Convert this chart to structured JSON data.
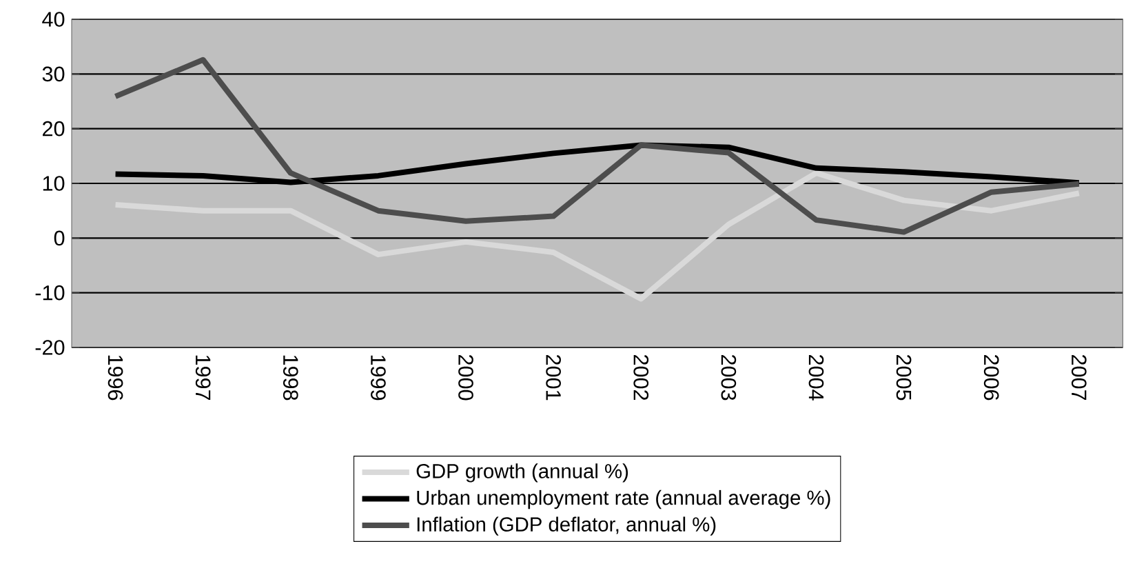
{
  "chart_data": {
    "type": "line",
    "categories": [
      "1996",
      "1997",
      "1998",
      "1999",
      "2000",
      "2001",
      "2002",
      "2003",
      "2004",
      "2005",
      "2006",
      "2007"
    ],
    "series": [
      {
        "name": "GDP growth (annual %)",
        "color": "#d9d9d9",
        "values": [
          6.1,
          5.0,
          5.0,
          -3.0,
          -0.7,
          -2.6,
          -11.1,
          2.5,
          11.9,
          6.9,
          5.0,
          8.2
        ]
      },
      {
        "name": "Urban unemployment rate (annual average %)",
        "color": "#000000",
        "values": [
          11.7,
          11.4,
          10.2,
          11.4,
          13.6,
          15.5,
          17.0,
          16.6,
          12.8,
          12.1,
          11.2,
          10.1
        ]
      },
      {
        "name": "Inflation (GDP deflator, annual %)",
        "color": "#4d4d4d",
        "values": [
          25.9,
          32.6,
          11.9,
          5.0,
          3.1,
          4.0,
          17.0,
          15.6,
          3.3,
          1.1,
          8.4,
          9.9
        ]
      }
    ],
    "ylim": [
      -20,
      40
    ],
    "yticks": [
      -20,
      -10,
      0,
      10,
      20,
      30,
      40
    ],
    "grid": "y",
    "legend": "bottom"
  }
}
